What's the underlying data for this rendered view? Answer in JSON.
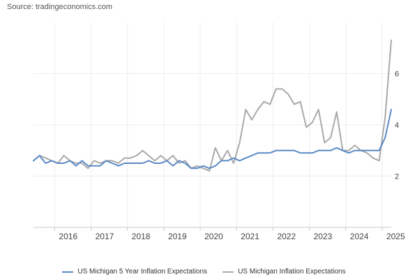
{
  "source": "Source: tradingeconomics.com",
  "colors": {
    "series1": "#5b8ac6",
    "series2": "#a9a9a9",
    "grid": "#ececec",
    "axis": "#c8c8c8",
    "text": "#444444"
  },
  "chart_data": {
    "type": "line",
    "xlabel": "",
    "ylabel": "",
    "x_ticks": [
      "2016",
      "2017",
      "2018",
      "2019",
      "2020",
      "2021",
      "2022",
      "2023",
      "2024",
      "2025"
    ],
    "y_ticks": [
      "2",
      "4",
      "6"
    ],
    "xlim": [
      "2015-06",
      "2025-04"
    ],
    "ylim": [
      0,
      8
    ],
    "grid": true,
    "legend": "bottom",
    "series": [
      {
        "name": "US Michigan 5 Year Inflation Expectations",
        "x": [
          "2015-06",
          "2015-08",
          "2015-10",
          "2015-12",
          "2016-02",
          "2016-04",
          "2016-06",
          "2016-08",
          "2016-10",
          "2016-12",
          "2017-02",
          "2017-04",
          "2017-06",
          "2017-08",
          "2017-10",
          "2017-12",
          "2018-02",
          "2018-04",
          "2018-06",
          "2018-08",
          "2018-10",
          "2018-12",
          "2019-02",
          "2019-04",
          "2019-06",
          "2019-08",
          "2019-10",
          "2019-12",
          "2020-02",
          "2020-04",
          "2020-06",
          "2020-08",
          "2020-10",
          "2020-12",
          "2021-02",
          "2021-04",
          "2021-06",
          "2021-08",
          "2021-10",
          "2021-12",
          "2022-02",
          "2022-04",
          "2022-06",
          "2022-08",
          "2022-10",
          "2022-12",
          "2023-02",
          "2023-04",
          "2023-06",
          "2023-08",
          "2023-10",
          "2023-12",
          "2024-02",
          "2024-04",
          "2024-06",
          "2024-08",
          "2024-10",
          "2024-12",
          "2025-02",
          "2025-04"
        ],
        "values": [
          2.6,
          2.8,
          2.5,
          2.6,
          2.5,
          2.5,
          2.6,
          2.4,
          2.6,
          2.4,
          2.4,
          2.4,
          2.6,
          2.5,
          2.4,
          2.5,
          2.5,
          2.5,
          2.5,
          2.6,
          2.5,
          2.5,
          2.6,
          2.4,
          2.6,
          2.5,
          2.3,
          2.3,
          2.4,
          2.3,
          2.4,
          2.6,
          2.6,
          2.7,
          2.6,
          2.7,
          2.8,
          2.9,
          2.9,
          2.9,
          3.0,
          3.0,
          3.0,
          3.0,
          2.9,
          2.9,
          2.9,
          3.0,
          3.0,
          3.0,
          3.1,
          3.0,
          2.9,
          3.0,
          3.0,
          3.0,
          3.0,
          3.0,
          3.5,
          4.6
        ]
      },
      {
        "name": "US Michigan Inflation Expectations",
        "x": [
          "2015-06",
          "2015-08",
          "2015-10",
          "2015-12",
          "2016-02",
          "2016-04",
          "2016-06",
          "2016-08",
          "2016-10",
          "2016-12",
          "2017-02",
          "2017-04",
          "2017-06",
          "2017-08",
          "2017-10",
          "2017-12",
          "2018-02",
          "2018-04",
          "2018-06",
          "2018-08",
          "2018-10",
          "2018-12",
          "2019-02",
          "2019-04",
          "2019-06",
          "2019-08",
          "2019-10",
          "2019-12",
          "2020-02",
          "2020-04",
          "2020-06",
          "2020-08",
          "2020-10",
          "2020-12",
          "2021-02",
          "2021-04",
          "2021-06",
          "2021-08",
          "2021-10",
          "2021-12",
          "2022-02",
          "2022-04",
          "2022-06",
          "2022-08",
          "2022-10",
          "2022-12",
          "2023-02",
          "2023-04",
          "2023-06",
          "2023-08",
          "2023-10",
          "2023-12",
          "2024-02",
          "2024-04",
          "2024-06",
          "2024-08",
          "2024-10",
          "2024-12",
          "2025-02",
          "2025-04"
        ],
        "values": [
          2.6,
          2.8,
          2.7,
          2.6,
          2.5,
          2.8,
          2.6,
          2.5,
          2.5,
          2.3,
          2.6,
          2.5,
          2.6,
          2.6,
          2.5,
          2.7,
          2.7,
          2.8,
          3.0,
          2.8,
          2.6,
          2.8,
          2.6,
          2.8,
          2.5,
          2.6,
          2.3,
          2.4,
          2.3,
          2.2,
          3.1,
          2.6,
          3.0,
          2.5,
          3.3,
          4.6,
          4.2,
          4.6,
          4.9,
          4.8,
          5.4,
          5.4,
          5.2,
          4.8,
          4.9,
          3.9,
          4.1,
          4.6,
          3.3,
          3.5,
          4.5,
          3.0,
          3.0,
          3.2,
          3.0,
          2.9,
          2.7,
          2.6,
          4.3,
          7.3
        ]
      }
    ]
  }
}
